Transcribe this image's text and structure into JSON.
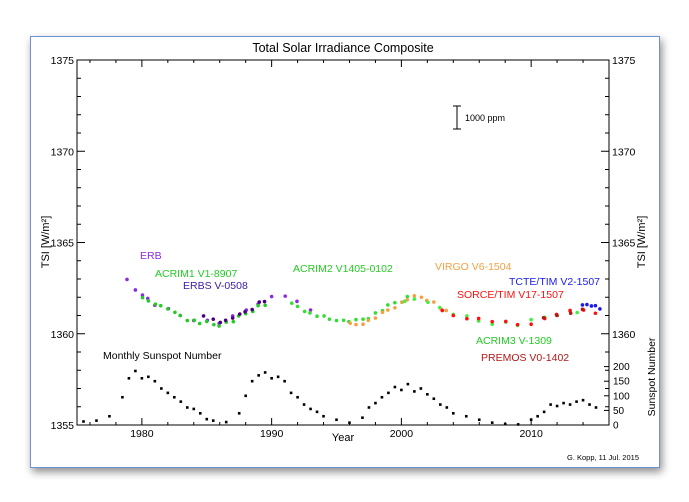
{
  "chart_data": {
    "type": "scatter",
    "title": "Total Solar Irradiance Composite",
    "xlabel": "Year",
    "ylabel": "TSI [W/m²]",
    "ylabel_right_bottom": "Sunspot Number",
    "xlim": [
      1975,
      2016
    ],
    "ylim": [
      1355,
      1375
    ],
    "x_ticks": [
      "1980",
      "1990",
      "2000",
      "2010"
    ],
    "y_ticks": [
      "1355",
      "1360",
      "1365",
      "1370",
      "1375"
    ],
    "sunspot_ticks": [
      "0",
      "50",
      "100",
      "150",
      "200"
    ],
    "scale_bar_label": "1000 ppm",
    "credit": "G. Kopp, 11 Jul. 2015",
    "sunspot_label": "Monthly Sunspot Number",
    "series": [
      {
        "name": "ERB",
        "color": "#8a2be2",
        "label_color": "#8a2be2",
        "x": [
          1978.9,
          1979.5,
          1980.0,
          1980.5,
          1981.0,
          1982.0,
          1983.0,
          1984.0,
          1985.0,
          1986.0,
          1987.0,
          1988.0,
          1989.0,
          1990.0,
          1991.0,
          1992.0,
          1993.0
        ],
        "y": [
          1362.9,
          1362.4,
          1362.2,
          1361.9,
          1361.6,
          1361.3,
          1361.0,
          1360.8,
          1360.7,
          1360.6,
          1360.9,
          1361.3,
          1361.7,
          1362.0,
          1362.1,
          1361.7,
          1361.3
        ]
      },
      {
        "name": "ACRIM1 V1-8907",
        "color": "#22cc22",
        "label_color": "#22cc22",
        "x": [
          1980.1,
          1980.5,
          1981.0,
          1981.5,
          1982.0,
          1982.5,
          1983.0,
          1983.5,
          1984.0,
          1984.5,
          1985.0,
          1985.5,
          1986.0,
          1986.5,
          1987.0,
          1987.5,
          1988.0,
          1988.5,
          1989.0,
          1989.5
        ],
        "y": [
          1361.9,
          1361.8,
          1361.7,
          1361.5,
          1361.4,
          1361.1,
          1361.0,
          1360.8,
          1360.7,
          1360.6,
          1360.6,
          1360.5,
          1360.5,
          1360.6,
          1360.7,
          1360.9,
          1361.1,
          1361.3,
          1361.5,
          1361.6
        ]
      },
      {
        "name": "ERBS V-0508",
        "color": "#4b0082",
        "label_color": "#3a1aa8",
        "x": [
          1984.8,
          1985.5,
          1986.0,
          1986.5,
          1987.0,
          1987.5,
          1988.0,
          1988.5,
          1989.0,
          1989.5
        ],
        "y": [
          1360.9,
          1360.8,
          1360.7,
          1360.7,
          1360.9,
          1361.0,
          1361.2,
          1361.4,
          1361.7,
          1361.8
        ]
      },
      {
        "name": "ACRIM2 V1405-0102",
        "color": "#33dd33",
        "label_color": "#22cc22",
        "x": [
          1991.6,
          1992.0,
          1992.5,
          1993.0,
          1993.5,
          1994.0,
          1994.5,
          1995.0,
          1995.5,
          1996.0,
          1996.5,
          1997.0,
          1997.5,
          1998.0,
          1998.5,
          1999.0,
          1999.5,
          2000.0,
          2000.5
        ],
        "y": [
          1361.6,
          1361.5,
          1361.3,
          1361.1,
          1361.0,
          1360.9,
          1360.8,
          1360.8,
          1360.7,
          1360.7,
          1360.7,
          1360.8,
          1360.9,
          1361.1,
          1361.3,
          1361.5,
          1361.7,
          1361.8,
          1362.0
        ]
      },
      {
        "name": "VIRGO V6-1504",
        "color": "#f4a040",
        "label_color": "#f4a040",
        "x": [
          1996.1,
          1996.5,
          1997.0,
          1997.5,
          1998.0,
          1998.5,
          1999.0,
          1999.5,
          2000.0,
          2000.5,
          2001.0,
          2001.5,
          2002.0,
          2002.5,
          2003.0,
          2003.5,
          2004.0
        ],
        "y": [
          1360.5,
          1360.5,
          1360.6,
          1360.7,
          1360.9,
          1361.1,
          1361.3,
          1361.5,
          1361.7,
          1361.9,
          1362.0,
          1362.0,
          1361.9,
          1361.7,
          1361.4,
          1361.2,
          1361.0
        ]
      },
      {
        "name": "ACRIM3 V-1309",
        "color": "#44ee44",
        "label_color": "#22cc22",
        "x": [
          2000.3,
          2001.0,
          2002.0,
          2003.0,
          2004.0,
          2005.0,
          2006.0,
          2007.0,
          2008.0,
          2009.0,
          2010.0,
          2011.0,
          2012.0,
          2013.0,
          2013.5
        ],
        "y": [
          1361.7,
          1361.9,
          1361.8,
          1361.4,
          1361.1,
          1360.9,
          1360.7,
          1360.6,
          1360.6,
          1360.5,
          1360.7,
          1360.9,
          1361.1,
          1361.2,
          1361.2
        ]
      },
      {
        "name": "SORCE/TIM V17-1507",
        "color": "#ff1010",
        "label_color": "#ff1010",
        "x": [
          2003.2,
          2004.0,
          2005.0,
          2006.0,
          2007.0,
          2008.0,
          2009.0,
          2010.0,
          2011.0,
          2012.0,
          2013.0,
          2014.0,
          2015.0
        ],
        "y": [
          1361.2,
          1361.0,
          1360.9,
          1360.8,
          1360.7,
          1360.6,
          1360.5,
          1360.6,
          1360.8,
          1361.1,
          1361.2,
          1361.3,
          1361.2
        ]
      },
      {
        "name": "PREMOS V0-1402",
        "color": "#b01818",
        "label_color": "#b01818",
        "x": [
          2011.0,
          2012.0,
          2013.0,
          2014.0
        ],
        "y": [
          1360.8,
          1361.0,
          1361.2,
          1361.3
        ]
      },
      {
        "name": "TCTE/TIM V2-1507",
        "color": "#1a1aee",
        "label_color": "#1a1aee",
        "x": [
          2014.0,
          2014.3,
          2014.6,
          2015.0,
          2015.3
        ],
        "y": [
          1361.5,
          1361.6,
          1361.6,
          1361.5,
          1361.4
        ]
      }
    ],
    "sunspot_series": {
      "name": "Monthly Sunspot Number",
      "color": "#000000",
      "x": [
        1975.5,
        1976.5,
        1977.5,
        1978.5,
        1979.0,
        1979.5,
        1980.0,
        1980.5,
        1981.0,
        1981.5,
        1982.0,
        1982.5,
        1983.0,
        1983.5,
        1984.0,
        1984.5,
        1985.0,
        1985.5,
        1986.5,
        1987.5,
        1988.0,
        1988.5,
        1989.0,
        1989.5,
        1990.0,
        1990.5,
        1991.0,
        1991.5,
        1992.0,
        1992.5,
        1993.0,
        1993.5,
        1994.0,
        1995.0,
        1996.0,
        1997.0,
        1997.5,
        1998.0,
        1998.5,
        1999.0,
        1999.5,
        2000.0,
        2000.5,
        2001.0,
        2001.5,
        2002.0,
        2002.5,
        2003.0,
        2003.5,
        2004.0,
        2005.0,
        2006.0,
        2007.0,
        2008.0,
        2009.0,
        2010.0,
        2010.5,
        2011.0,
        2011.5,
        2012.0,
        2012.5,
        2013.0,
        2013.5,
        2014.0,
        2014.5,
        2015.0
      ],
      "y": [
        12,
        15,
        30,
        95,
        160,
        185,
        160,
        165,
        150,
        125,
        110,
        95,
        80,
        60,
        55,
        40,
        20,
        15,
        10,
        40,
        100,
        150,
        170,
        180,
        160,
        165,
        150,
        110,
        95,
        70,
        55,
        45,
        30,
        18,
        8,
        25,
        60,
        75,
        95,
        110,
        130,
        120,
        140,
        115,
        125,
        105,
        90,
        70,
        60,
        40,
        30,
        18,
        8,
        3,
        2,
        18,
        30,
        45,
        70,
        65,
        75,
        70,
        80,
        85,
        70,
        60
      ]
    }
  }
}
